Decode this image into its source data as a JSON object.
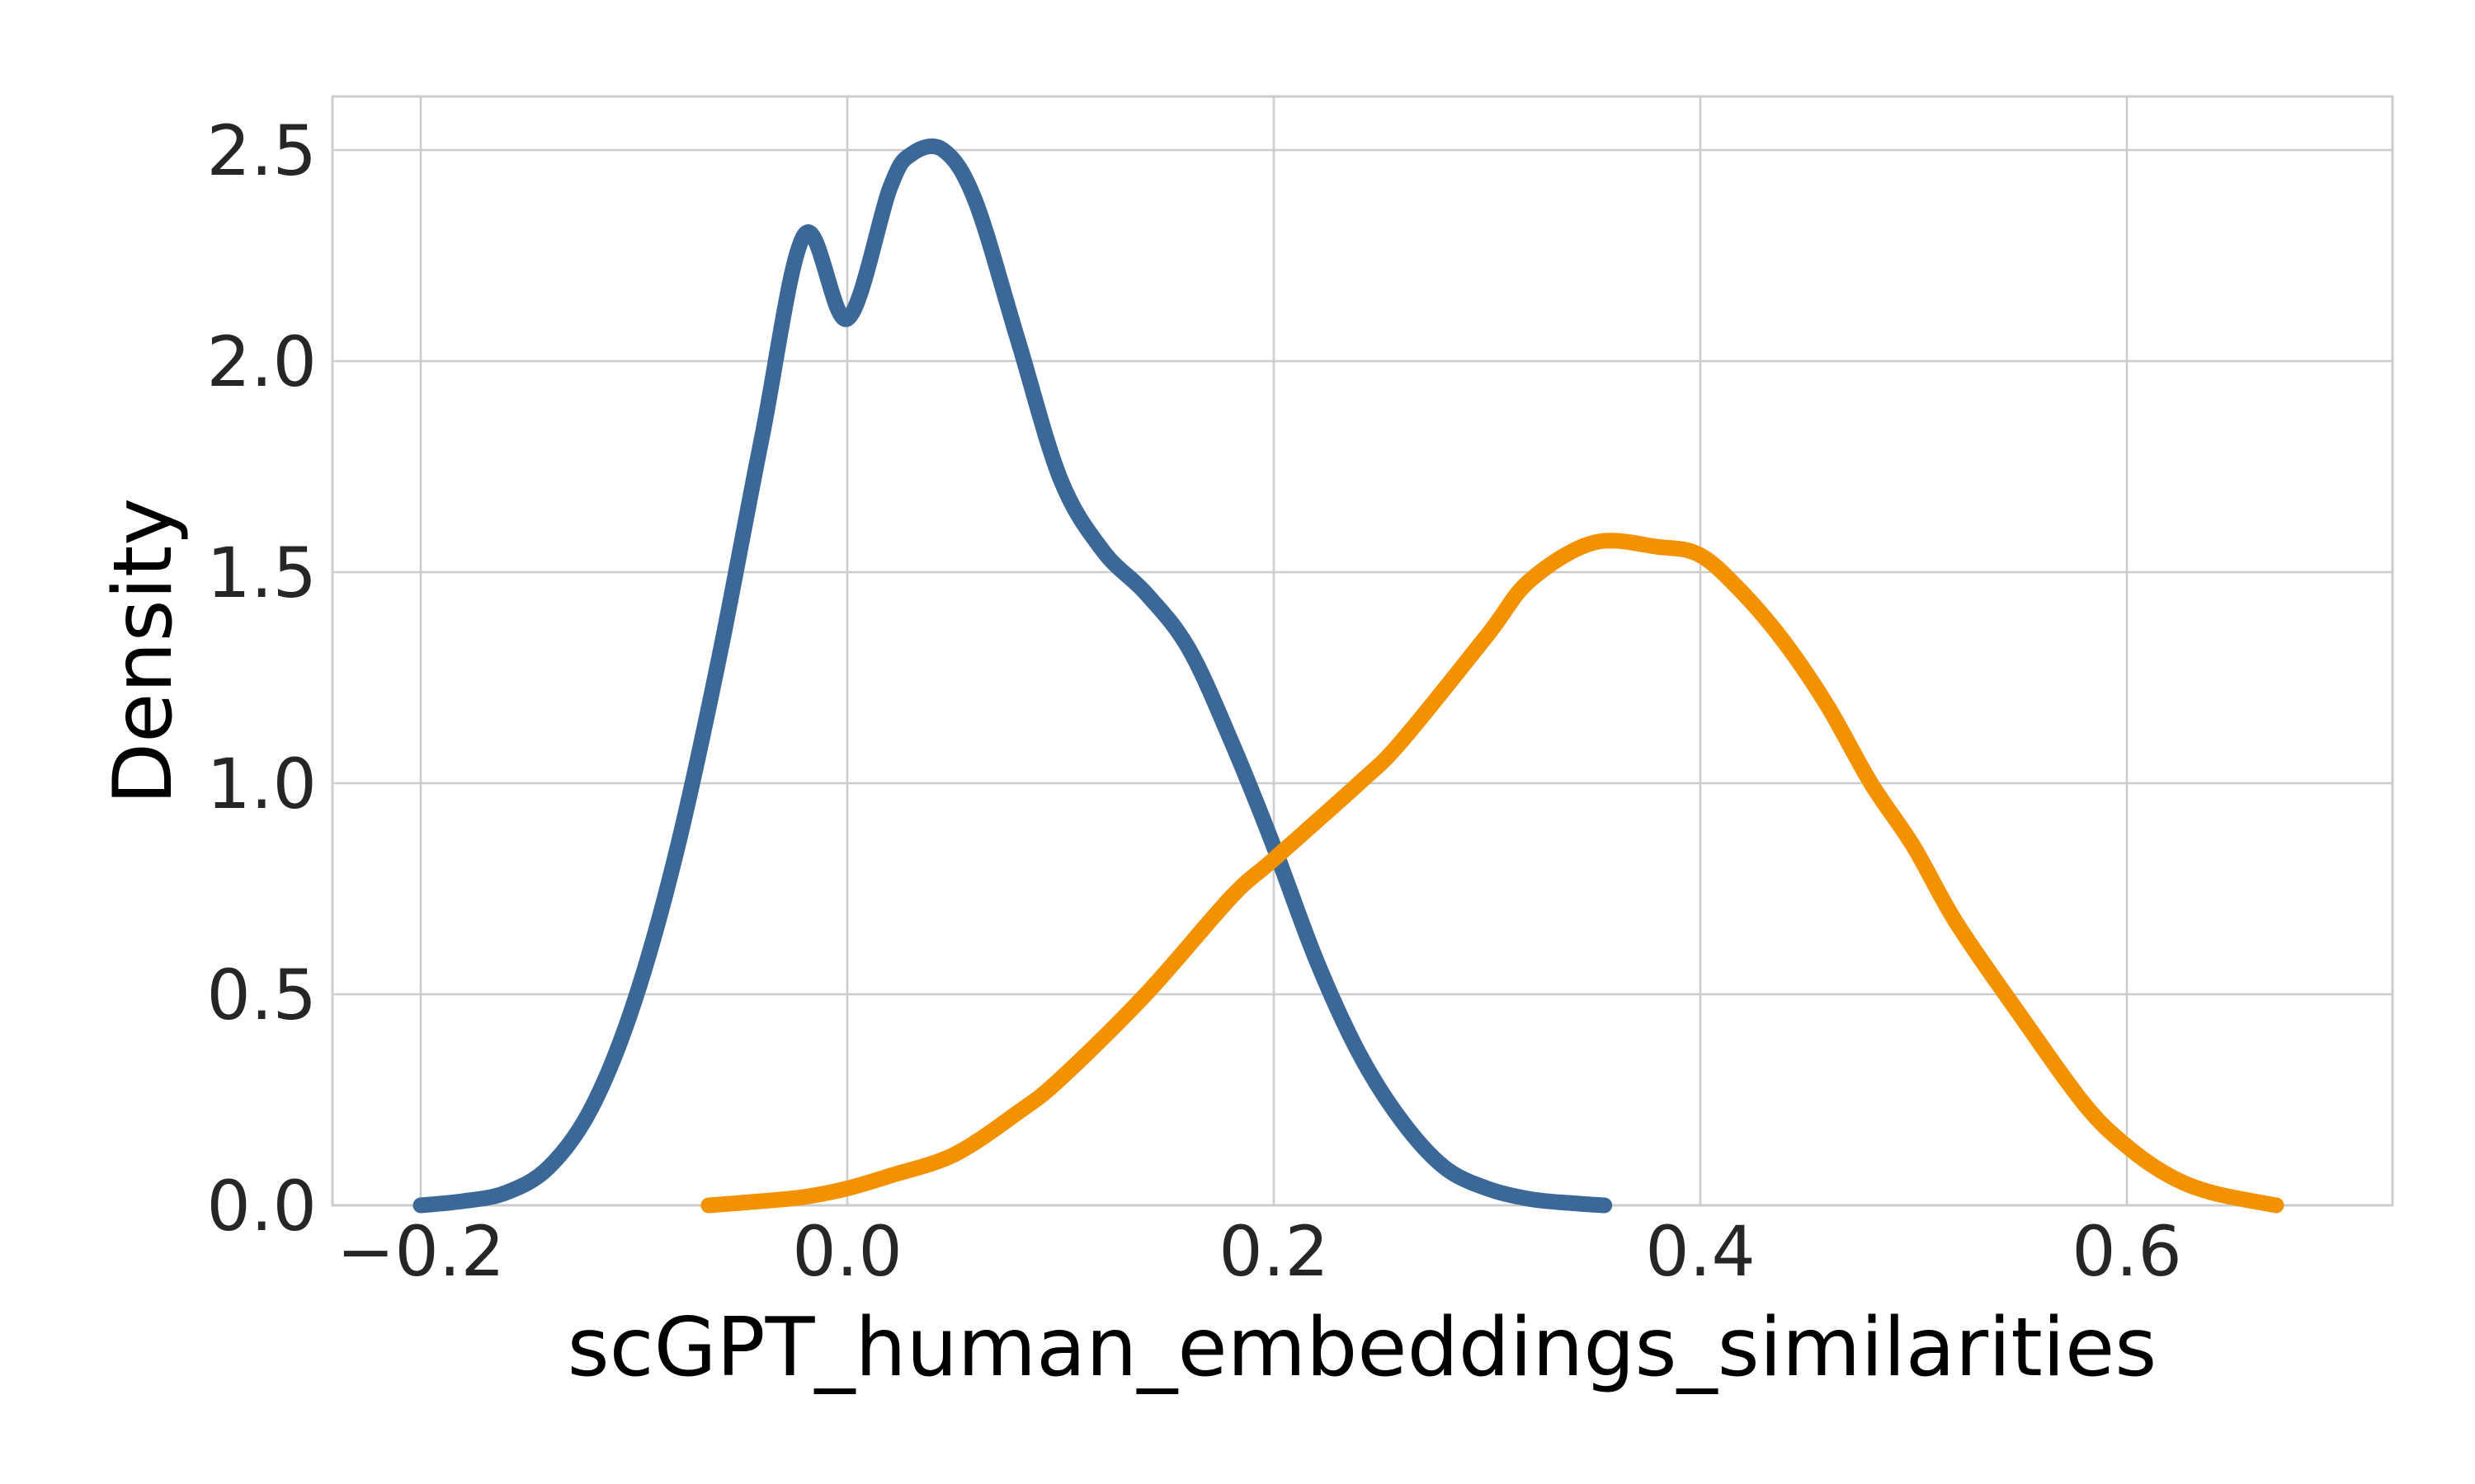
{
  "chart_data": {
    "type": "line",
    "title": "",
    "xlabel": "scGPT_human_embeddings_similarities",
    "ylabel": "Density",
    "xlim": [
      -0.2,
      0.72
    ],
    "ylim": [
      0.0,
      2.63
    ],
    "x_ticks": [
      -0.2,
      0.0,
      0.2,
      0.4,
      0.6
    ],
    "x_tick_labels": [
      "−0.2",
      "0.0",
      "0.2",
      "0.4",
      "0.6"
    ],
    "y_ticks": [
      0.0,
      0.5,
      1.0,
      1.5,
      2.0,
      2.5
    ],
    "y_tick_labels": [
      "0.0",
      "0.5",
      "1.0",
      "1.5",
      "2.0",
      "2.5"
    ],
    "grid": true,
    "legend": "none",
    "series": [
      {
        "color": "#3c6897",
        "x": [
          -0.2,
          -0.18,
          -0.16,
          -0.14,
          -0.12,
          -0.1,
          -0.08,
          -0.06,
          -0.04,
          -0.02,
          0.0,
          0.02,
          0.03,
          0.045,
          0.06,
          0.08,
          0.1,
          0.12,
          0.14,
          0.16,
          0.18,
          0.2,
          0.22,
          0.24,
          0.26,
          0.28,
          0.3,
          0.32,
          0.34,
          0.355
        ],
        "y": [
          0.0,
          0.01,
          0.03,
          0.09,
          0.23,
          0.48,
          0.84,
          1.3,
          1.82,
          2.3,
          2.1,
          2.41,
          2.49,
          2.5,
          2.38,
          2.05,
          1.72,
          1.55,
          1.45,
          1.32,
          1.1,
          0.85,
          0.58,
          0.36,
          0.2,
          0.09,
          0.04,
          0.015,
          0.005,
          0.0
        ]
      },
      {
        "color": "#f39200",
        "x": [
          -0.065,
          -0.04,
          -0.02,
          0.0,
          0.02,
          0.05,
          0.08,
          0.1,
          0.14,
          0.18,
          0.2,
          0.24,
          0.26,
          0.3,
          0.32,
          0.35,
          0.38,
          0.4,
          0.42,
          0.44,
          0.46,
          0.48,
          0.5,
          0.52,
          0.55,
          0.58,
          0.6,
          0.62,
          0.64,
          0.67
        ],
        "y": [
          0.0,
          0.01,
          0.02,
          0.04,
          0.07,
          0.12,
          0.22,
          0.3,
          0.5,
          0.73,
          0.82,
          1.0,
          1.1,
          1.35,
          1.48,
          1.57,
          1.56,
          1.54,
          1.45,
          1.33,
          1.18,
          1.0,
          0.85,
          0.67,
          0.45,
          0.24,
          0.14,
          0.07,
          0.03,
          0.0
        ]
      }
    ]
  }
}
